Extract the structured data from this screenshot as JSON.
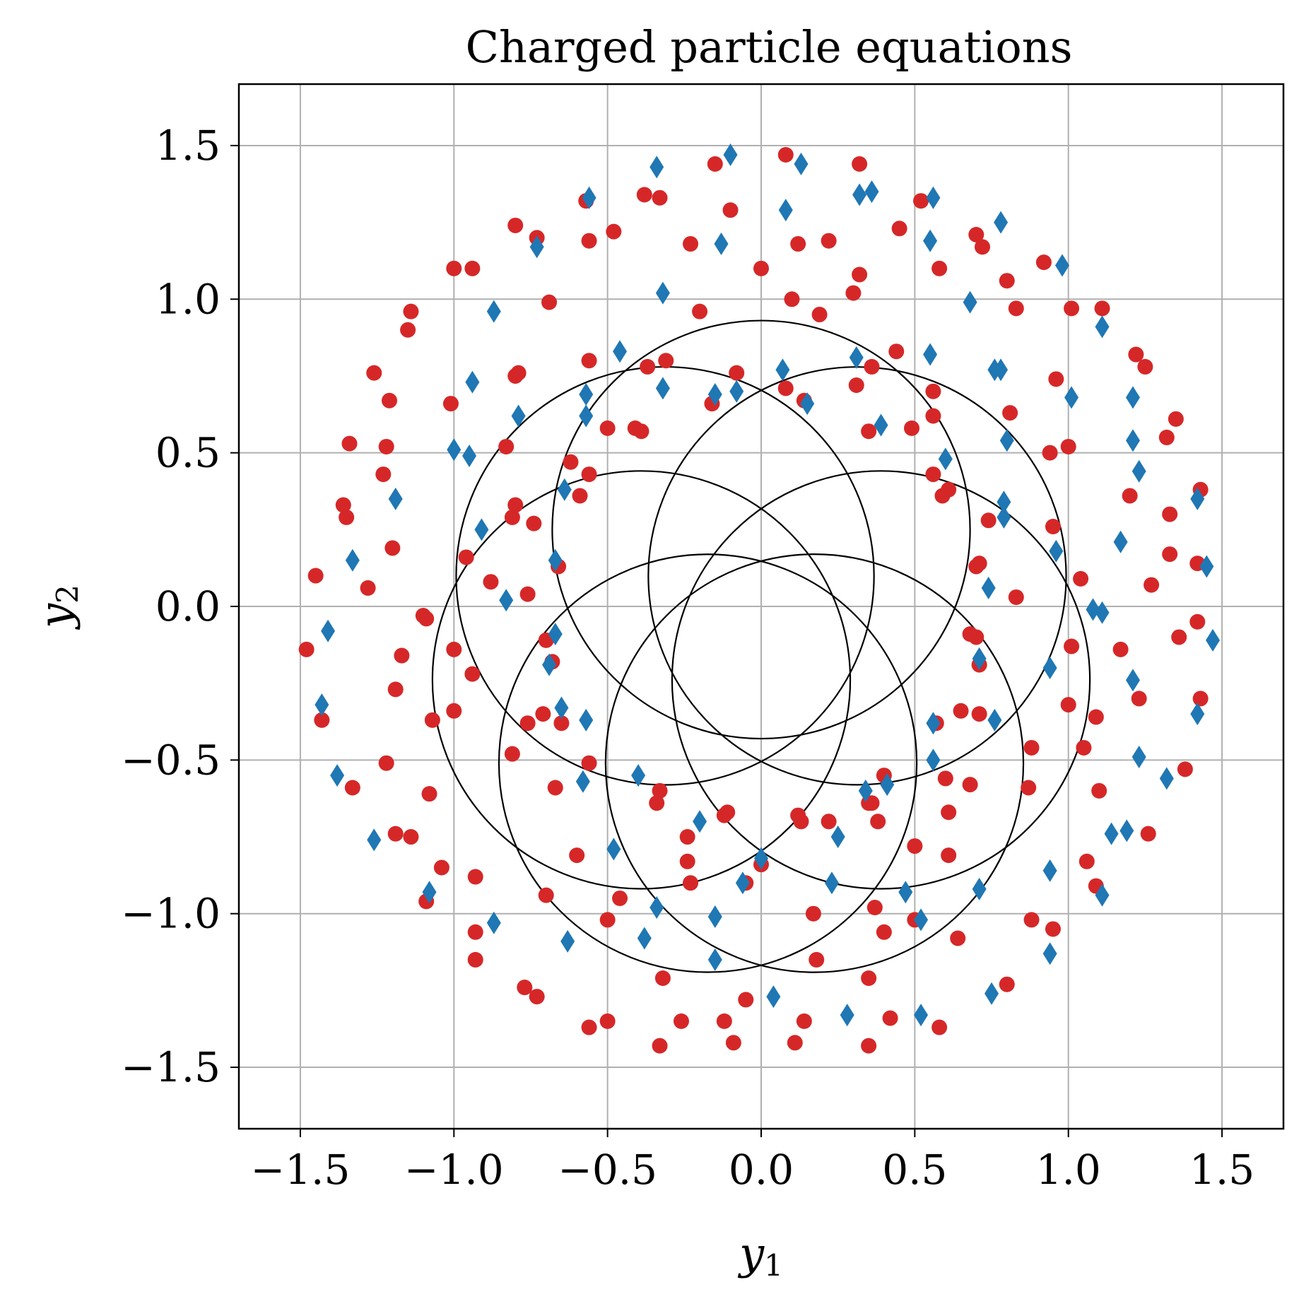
{
  "chart_data": {
    "type": "scatter",
    "title": "Charged particle equations",
    "xlabel": {
      "main": "y",
      "sub": "1"
    },
    "ylabel": {
      "main": "y",
      "sub": "2"
    },
    "xlim": [
      -1.7,
      1.7
    ],
    "ylim": [
      -1.7,
      1.7
    ],
    "xticks": [
      -1.5,
      -1.0,
      -0.5,
      0.0,
      0.5,
      1.0,
      1.5
    ],
    "yticks": [
      -1.5,
      -1.0,
      -0.5,
      0.0,
      0.5,
      1.0,
      1.5
    ],
    "xtick_labels": [
      "−1.5",
      "−1.0",
      "−0.5",
      "0.0",
      "0.5",
      "1.0",
      "1.5"
    ],
    "ytick_labels": [
      "−1.5",
      "−1.0",
      "−0.5",
      "0.0",
      "0.5",
      "1.0",
      "1.5"
    ],
    "grid": true,
    "colors": {
      "line": "#000000",
      "dots": "#d62728",
      "diamonds": "#1f77b4",
      "grid": "#b0b0b0"
    },
    "trajectory": {
      "description": "rosette of 7 orbits",
      "orbits": 7,
      "orbit_radius": 0.68,
      "center_ring_radius": 0.4,
      "center_offset_y": -0.15,
      "first_center_angle_deg": 90
    },
    "series": [
      {
        "marker": "circle",
        "color": "#d62728",
        "points": [
          [
            0.08,
            1.47
          ],
          [
            0.32,
            1.44
          ],
          [
            -0.15,
            1.44
          ],
          [
            -0.33,
            1.33
          ],
          [
            -0.38,
            1.34
          ],
          [
            0.52,
            1.32
          ],
          [
            -0.57,
            1.32
          ],
          [
            -0.8,
            1.24
          ],
          [
            -0.48,
            1.22
          ],
          [
            0.45,
            1.23
          ],
          [
            0.7,
            1.21
          ],
          [
            0.72,
            1.17
          ],
          [
            -0.73,
            1.2
          ],
          [
            -0.56,
            1.19
          ],
          [
            -0.23,
            1.18
          ],
          [
            0.22,
            1.19
          ],
          [
            0.12,
            1.18
          ],
          [
            -1.0,
            1.1
          ],
          [
            -0.94,
            1.1
          ],
          [
            0.0,
            1.1
          ],
          [
            -0.1,
            1.29
          ],
          [
            0.92,
            1.12
          ],
          [
            0.58,
            1.1
          ],
          [
            0.32,
            1.08
          ],
          [
            0.8,
            1.06
          ],
          [
            -0.69,
            0.99
          ],
          [
            0.3,
            1.02
          ],
          [
            0.1,
            1.0
          ],
          [
            1.01,
            0.97
          ],
          [
            1.11,
            0.97
          ],
          [
            -1.14,
            0.96
          ],
          [
            0.83,
            0.97
          ],
          [
            -0.2,
            0.96
          ],
          [
            0.19,
            0.95
          ],
          [
            -1.15,
            0.9
          ],
          [
            0.44,
            0.83
          ],
          [
            1.22,
            0.82
          ],
          [
            1.25,
            0.78
          ],
          [
            -1.26,
            0.76
          ],
          [
            0.36,
            0.78
          ],
          [
            -0.37,
            0.78
          ],
          [
            -0.31,
            0.8
          ],
          [
            -0.56,
            0.8
          ],
          [
            -0.79,
            0.76
          ],
          [
            -0.8,
            0.75
          ],
          [
            -0.08,
            0.76
          ],
          [
            0.96,
            0.74
          ],
          [
            0.31,
            0.72
          ],
          [
            0.08,
            0.71
          ],
          [
            0.14,
            0.67
          ],
          [
            -0.16,
            0.66
          ],
          [
            0.56,
            0.7
          ],
          [
            -1.21,
            0.67
          ],
          [
            -1.01,
            0.66
          ],
          [
            0.81,
            0.63
          ],
          [
            0.56,
            0.62
          ],
          [
            1.35,
            0.61
          ],
          [
            -0.5,
            0.58
          ],
          [
            -0.41,
            0.58
          ],
          [
            -0.39,
            0.57
          ],
          [
            0.49,
            0.58
          ],
          [
            0.35,
            0.57
          ],
          [
            -0.83,
            0.52
          ],
          [
            1.32,
            0.55
          ],
          [
            1.0,
            0.52
          ],
          [
            -1.34,
            0.53
          ],
          [
            -1.22,
            0.52
          ],
          [
            0.94,
            0.5
          ],
          [
            -0.62,
            0.47
          ],
          [
            0.56,
            0.43
          ],
          [
            -1.23,
            0.43
          ],
          [
            -0.56,
            0.43
          ],
          [
            0.61,
            0.38
          ],
          [
            1.43,
            0.38
          ],
          [
            0.59,
            0.36
          ],
          [
            1.2,
            0.36
          ],
          [
            -0.59,
            0.36
          ],
          [
            -0.8,
            0.33
          ],
          [
            -1.36,
            0.33
          ],
          [
            -1.35,
            0.29
          ],
          [
            -0.81,
            0.29
          ],
          [
            0.74,
            0.28
          ],
          [
            1.33,
            0.3
          ],
          [
            -0.74,
            0.27
          ],
          [
            0.95,
            0.26
          ],
          [
            -1.2,
            0.19
          ],
          [
            -0.96,
            0.16
          ],
          [
            1.33,
            0.17
          ],
          [
            0.71,
            0.14
          ],
          [
            0.7,
            0.13
          ],
          [
            1.42,
            0.14
          ],
          [
            -0.66,
            0.13
          ],
          [
            -1.45,
            0.1
          ],
          [
            1.04,
            0.09
          ],
          [
            -0.88,
            0.08
          ],
          [
            1.27,
            0.07
          ],
          [
            -1.28,
            0.06
          ],
          [
            -0.76,
            0.04
          ],
          [
            0.83,
            0.03
          ],
          [
            -1.09,
            -0.04
          ],
          [
            -1.1,
            -0.03
          ],
          [
            1.42,
            -0.05
          ],
          [
            -0.7,
            -0.11
          ],
          [
            0.68,
            -0.09
          ],
          [
            0.7,
            -0.1
          ],
          [
            1.36,
            -0.1
          ],
          [
            -1.48,
            -0.14
          ],
          [
            -1.0,
            -0.14
          ],
          [
            1.17,
            -0.14
          ],
          [
            1.01,
            -0.13
          ],
          [
            -0.68,
            -0.18
          ],
          [
            0.71,
            -0.19
          ],
          [
            -1.17,
            -0.16
          ],
          [
            -0.94,
            -0.22
          ],
          [
            -1.19,
            -0.27
          ],
          [
            1.43,
            -0.3
          ],
          [
            1.23,
            -0.3
          ],
          [
            -1.0,
            -0.34
          ],
          [
            0.65,
            -0.34
          ],
          [
            0.71,
            -0.35
          ],
          [
            1.0,
            -0.32
          ],
          [
            -0.71,
            -0.35
          ],
          [
            1.09,
            -0.36
          ],
          [
            -1.43,
            -0.37
          ],
          [
            -1.07,
            -0.37
          ],
          [
            -0.76,
            -0.38
          ],
          [
            -0.65,
            -0.38
          ],
          [
            0.57,
            -0.38
          ],
          [
            -0.81,
            -0.48
          ],
          [
            0.88,
            -0.46
          ],
          [
            1.05,
            -0.46
          ],
          [
            1.38,
            -0.53
          ],
          [
            -1.22,
            -0.51
          ],
          [
            -0.56,
            -0.51
          ],
          [
            0.6,
            -0.56
          ],
          [
            0.35,
            -0.64
          ],
          [
            0.4,
            -0.55
          ],
          [
            0.87,
            -0.59
          ],
          [
            -0.33,
            -0.6
          ],
          [
            -1.33,
            -0.59
          ],
          [
            -1.08,
            -0.61
          ],
          [
            -0.67,
            -0.59
          ],
          [
            0.36,
            -0.64
          ],
          [
            -0.34,
            -0.64
          ],
          [
            0.68,
            -0.58
          ],
          [
            1.1,
            -0.6
          ],
          [
            0.61,
            -0.67
          ],
          [
            0.13,
            -0.7
          ],
          [
            0.12,
            -0.68
          ],
          [
            -0.11,
            -0.67
          ],
          [
            0.22,
            -0.7
          ],
          [
            -0.12,
            -0.68
          ],
          [
            0.38,
            -0.7
          ],
          [
            -1.19,
            -0.74
          ],
          [
            -1.14,
            -0.75
          ],
          [
            -0.24,
            -0.75
          ],
          [
            1.26,
            -0.74
          ],
          [
            0.5,
            -0.78
          ],
          [
            -0.6,
            -0.81
          ],
          [
            0.61,
            -0.81
          ],
          [
            -1.04,
            -0.85
          ],
          [
            1.06,
            -0.83
          ],
          [
            -0.24,
            -0.83
          ],
          [
            -0.93,
            -0.88
          ],
          [
            0.0,
            -0.84
          ],
          [
            -0.23,
            -0.9
          ],
          [
            -0.05,
            -0.9
          ],
          [
            1.09,
            -0.91
          ],
          [
            -0.7,
            -0.94
          ],
          [
            -0.46,
            -0.95
          ],
          [
            -1.09,
            -0.96
          ],
          [
            0.17,
            -1.0
          ],
          [
            0.5,
            -1.02
          ],
          [
            -0.5,
            -1.02
          ],
          [
            0.88,
            -1.02
          ],
          [
            0.37,
            -0.98
          ],
          [
            0.4,
            -1.06
          ],
          [
            -0.93,
            -1.06
          ],
          [
            0.64,
            -1.08
          ],
          [
            0.95,
            -1.05
          ],
          [
            -0.93,
            -1.15
          ],
          [
            0.18,
            -1.15
          ],
          [
            -0.32,
            -1.21
          ],
          [
            0.35,
            -1.21
          ],
          [
            -0.77,
            -1.24
          ],
          [
            0.8,
            -1.23
          ],
          [
            -0.73,
            -1.27
          ],
          [
            -0.05,
            -1.28
          ],
          [
            -0.5,
            -1.35
          ],
          [
            -0.26,
            -1.35
          ],
          [
            -0.12,
            -1.35
          ],
          [
            0.14,
            -1.35
          ],
          [
            0.42,
            -1.34
          ],
          [
            -0.56,
            -1.37
          ],
          [
            0.58,
            -1.37
          ],
          [
            -0.33,
            -1.43
          ],
          [
            -0.09,
            -1.42
          ],
          [
            0.11,
            -1.42
          ],
          [
            0.35,
            -1.43
          ]
        ]
      },
      {
        "marker": "diamond",
        "color": "#1f77b4",
        "points": [
          [
            -0.1,
            1.47
          ],
          [
            0.13,
            1.44
          ],
          [
            -0.34,
            1.43
          ],
          [
            0.56,
            1.33
          ],
          [
            -0.56,
            1.33
          ],
          [
            0.32,
            1.34
          ],
          [
            0.36,
            1.35
          ],
          [
            0.08,
            1.29
          ],
          [
            0.78,
            1.25
          ],
          [
            -0.73,
            1.17
          ],
          [
            0.55,
            1.19
          ],
          [
            -0.13,
            1.18
          ],
          [
            0.98,
            1.11
          ],
          [
            -0.32,
            1.02
          ],
          [
            0.68,
            0.99
          ],
          [
            -0.87,
            0.96
          ],
          [
            1.11,
            0.91
          ],
          [
            -0.46,
            0.83
          ],
          [
            0.55,
            0.82
          ],
          [
            0.31,
            0.81
          ],
          [
            0.76,
            0.77
          ],
          [
            0.78,
            0.77
          ],
          [
            0.07,
            0.77
          ],
          [
            -0.32,
            0.71
          ],
          [
            -0.94,
            0.73
          ],
          [
            -0.08,
            0.7
          ],
          [
            -0.57,
            0.69
          ],
          [
            -0.15,
            0.69
          ],
          [
            1.01,
            0.68
          ],
          [
            1.21,
            0.68
          ],
          [
            0.15,
            0.66
          ],
          [
            -0.79,
            0.62
          ],
          [
            -0.57,
            0.62
          ],
          [
            0.39,
            0.59
          ],
          [
            0.8,
            0.54
          ],
          [
            -1.0,
            0.51
          ],
          [
            -0.95,
            0.49
          ],
          [
            1.21,
            0.54
          ],
          [
            0.6,
            0.48
          ],
          [
            1.23,
            0.44
          ],
          [
            -0.64,
            0.38
          ],
          [
            1.42,
            0.35
          ],
          [
            -1.19,
            0.35
          ],
          [
            0.79,
            0.34
          ],
          [
            0.79,
            0.29
          ],
          [
            -0.91,
            0.25
          ],
          [
            1.17,
            0.21
          ],
          [
            0.96,
            0.18
          ],
          [
            -1.33,
            0.15
          ],
          [
            -0.67,
            0.15
          ],
          [
            1.45,
            0.13
          ],
          [
            0.74,
            0.06
          ],
          [
            -0.83,
            0.02
          ],
          [
            1.08,
            -0.01
          ],
          [
            1.11,
            -0.02
          ],
          [
            -1.41,
            -0.08
          ],
          [
            -0.67,
            -0.09
          ],
          [
            1.47,
            -0.11
          ],
          [
            0.71,
            -0.17
          ],
          [
            -0.69,
            -0.19
          ],
          [
            0.94,
            -0.2
          ],
          [
            1.21,
            -0.24
          ],
          [
            -1.43,
            -0.32
          ],
          [
            -0.65,
            -0.33
          ],
          [
            1.42,
            -0.35
          ],
          [
            -0.57,
            -0.37
          ],
          [
            0.56,
            -0.38
          ],
          [
            0.76,
            -0.37
          ],
          [
            1.23,
            -0.49
          ],
          [
            0.56,
            -0.5
          ],
          [
            -1.38,
            -0.55
          ],
          [
            -0.4,
            -0.55
          ],
          [
            0.34,
            -0.6
          ],
          [
            0.41,
            -0.58
          ],
          [
            -0.58,
            -0.57
          ],
          [
            1.32,
            -0.56
          ],
          [
            -0.2,
            -0.7
          ],
          [
            0.25,
            -0.75
          ],
          [
            1.14,
            -0.74
          ],
          [
            1.19,
            -0.73
          ],
          [
            -1.26,
            -0.76
          ],
          [
            -0.48,
            -0.79
          ],
          [
            0.0,
            -0.82
          ],
          [
            0.94,
            -0.86
          ],
          [
            -0.06,
            -0.9
          ],
          [
            0.23,
            -0.9
          ],
          [
            0.47,
            -0.93
          ],
          [
            0.71,
            -0.92
          ],
          [
            -1.08,
            -0.93
          ],
          [
            1.11,
            -0.94
          ],
          [
            -0.34,
            -0.98
          ],
          [
            -0.15,
            -1.01
          ],
          [
            -0.87,
            -1.03
          ],
          [
            0.52,
            -1.02
          ],
          [
            -0.38,
            -1.08
          ],
          [
            -0.63,
            -1.09
          ],
          [
            0.94,
            -1.13
          ],
          [
            -0.15,
            -1.15
          ],
          [
            0.04,
            -1.27
          ],
          [
            0.75,
            -1.26
          ],
          [
            0.28,
            -1.33
          ],
          [
            0.52,
            -1.33
          ]
        ]
      }
    ]
  }
}
